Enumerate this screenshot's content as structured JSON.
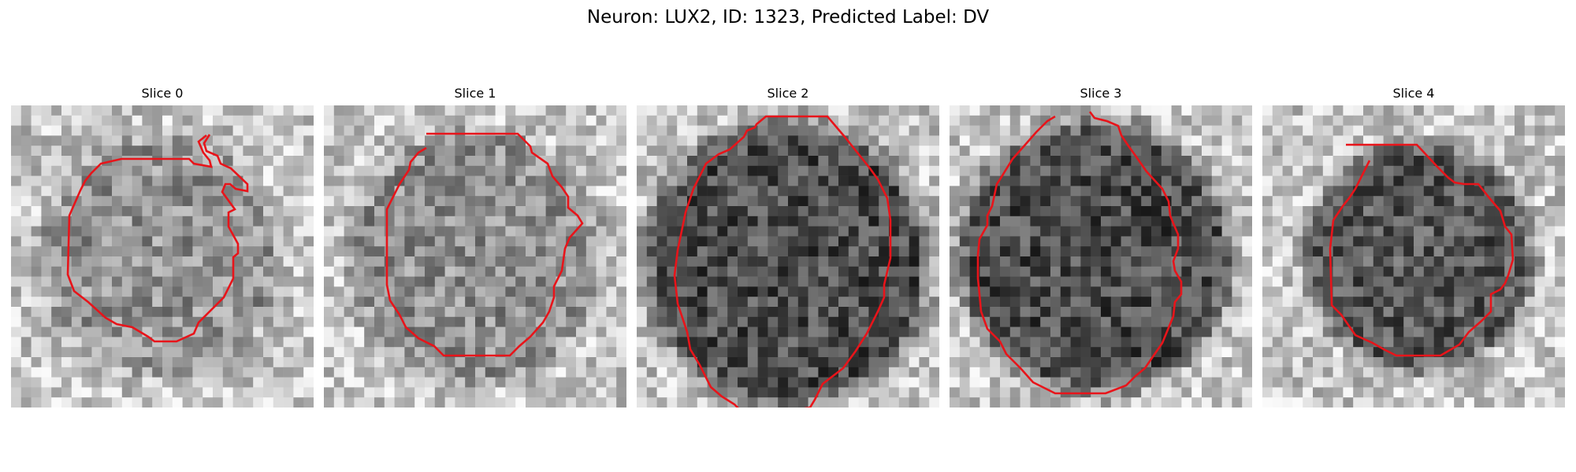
{
  "figure": {
    "title": "Neuron: LUX2, ID: 1323, Predicted Label: DV"
  },
  "colors": {
    "contour": "#e8141a",
    "background": "#ffffff"
  },
  "slices": [
    {
      "title": "Slice 0",
      "tone": "mixed"
    },
    {
      "title": "Slice 1",
      "tone": "mixed"
    },
    {
      "title": "Slice 2",
      "tone": "dark"
    },
    {
      "title": "Slice 3",
      "tone": "dark"
    },
    {
      "title": "Slice 4",
      "tone": "dark"
    }
  ]
}
